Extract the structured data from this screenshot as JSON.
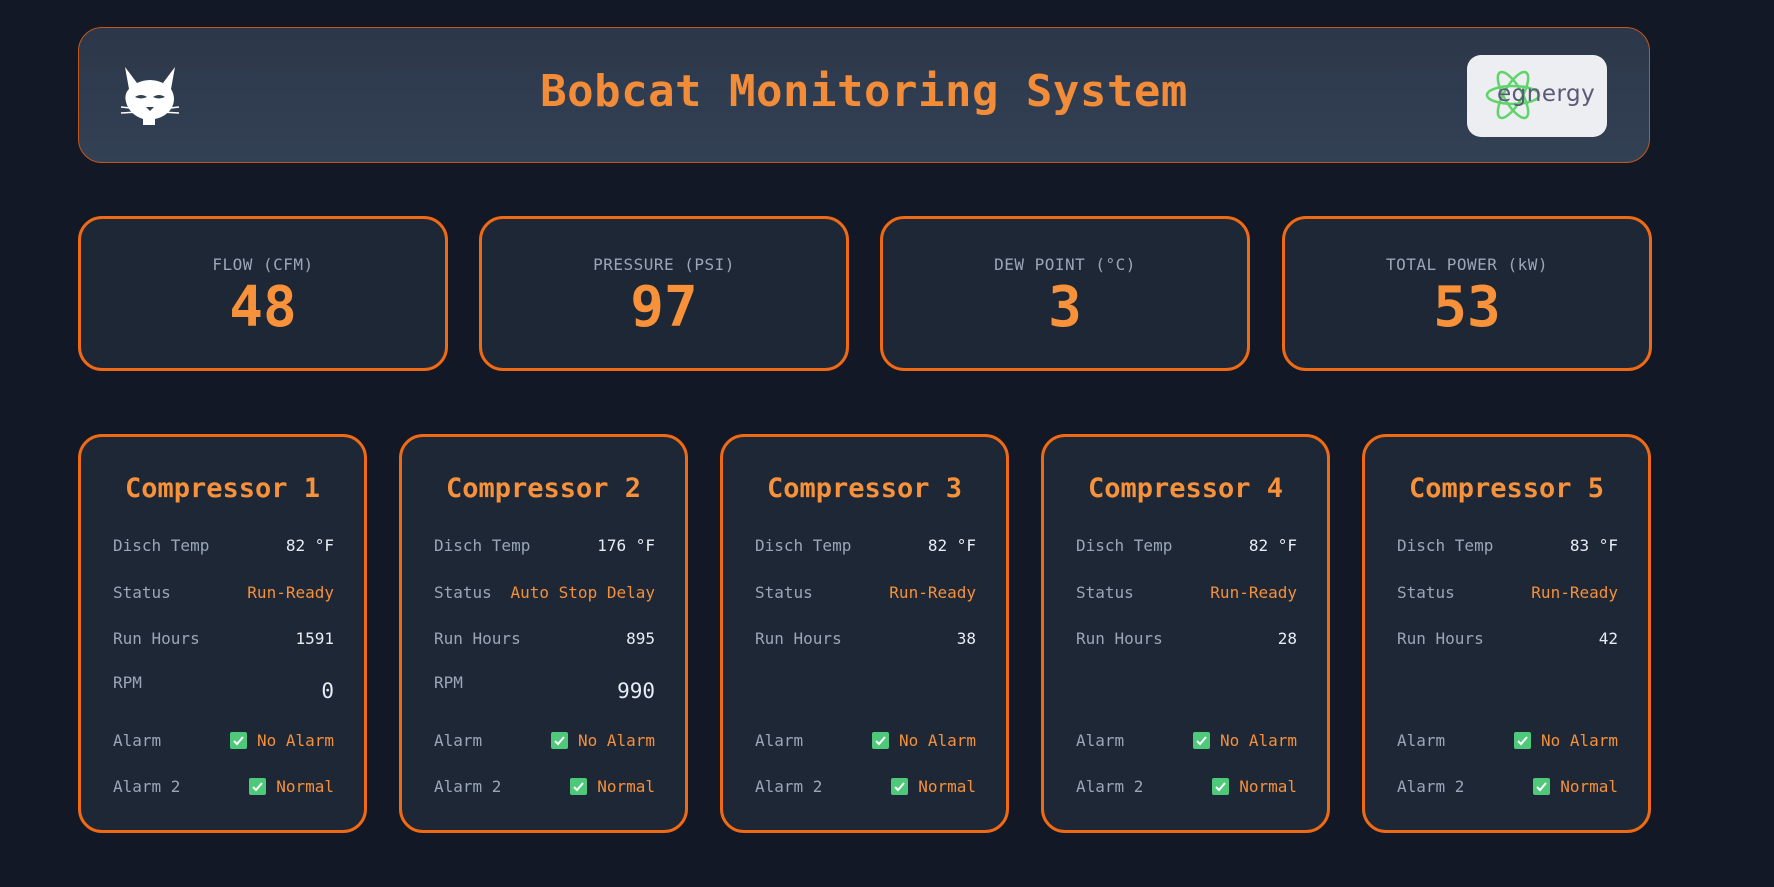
{
  "header": {
    "title": "Bobcat Monitoring System",
    "logo_icon": "bobcat-logo-icon",
    "partner_logo_text": "egnergy",
    "accent": "#f28c38"
  },
  "metrics": [
    {
      "label": "FLOW (CFM)",
      "value": "48"
    },
    {
      "label": "PRESSURE (PSI)",
      "value": "97"
    },
    {
      "label": "DEW POINT (°C)",
      "value": "3"
    },
    {
      "label": "TOTAL POWER (kW)",
      "value": "53"
    }
  ],
  "labels": {
    "disch_temp": "Disch Temp",
    "status": "Status",
    "run_hours": "Run Hours",
    "rpm": "RPM",
    "alarm": "Alarm",
    "alarm2": "Alarm 2"
  },
  "compressors": [
    {
      "name": "Compressor 1",
      "disch_temp": "82 °F",
      "status": "Run-Ready",
      "run_hours": "1591",
      "rpm": "0",
      "alarm": "No Alarm",
      "alarm2": "Normal"
    },
    {
      "name": "Compressor 2",
      "disch_temp": "176 °F",
      "status": "Auto Stop Delay",
      "run_hours": "895",
      "rpm": "990",
      "alarm": "No Alarm",
      "alarm2": "Normal"
    },
    {
      "name": "Compressor 3",
      "disch_temp": "82 °F",
      "status": "Run-Ready",
      "run_hours": "38",
      "alarm": "No Alarm",
      "alarm2": "Normal"
    },
    {
      "name": "Compressor 4",
      "disch_temp": "82 °F",
      "status": "Run-Ready",
      "run_hours": "28",
      "alarm": "No Alarm",
      "alarm2": "Normal"
    },
    {
      "name": "Compressor 5",
      "disch_temp": "83 °F",
      "status": "Run-Ready",
      "run_hours": "42",
      "alarm": "No Alarm",
      "alarm2": "Normal"
    }
  ],
  "colors": {
    "background": "#121826",
    "card": "#1e2736",
    "border": "#f06a14",
    "ok": "#4ec97a"
  }
}
